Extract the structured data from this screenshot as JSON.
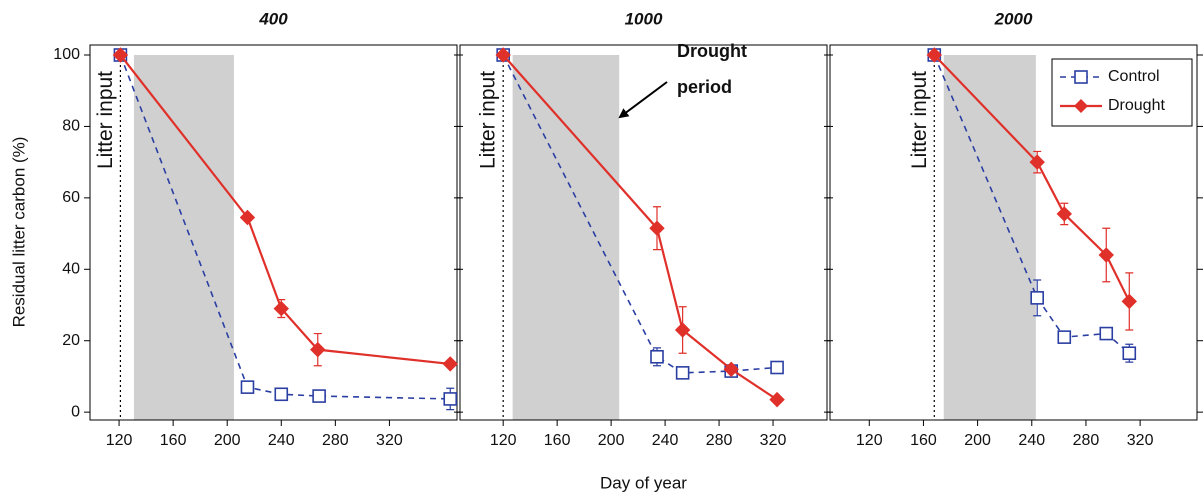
{
  "chart_data": [
    {
      "type": "line",
      "title": "400",
      "ylabel": "Residual litter carbon (%)",
      "xlim": [
        98.5,
        370
      ],
      "ylim": [
        -2.2,
        102.8
      ],
      "xticks": [
        120,
        160,
        200,
        240,
        280,
        320
      ],
      "yticks": [
        0,
        20,
        40,
        60,
        80,
        100
      ],
      "litter_input": {
        "day": 121,
        "label": "Litter input"
      },
      "drought_period": [
        131,
        205
      ],
      "series": [
        {
          "name": "Control",
          "color": "#2b3fa3",
          "x": [
            121,
            215,
            240,
            268,
            365
          ],
          "values": [
            100,
            7,
            5,
            4.5,
            3.7
          ],
          "errors": [
            1,
            1.2,
            1,
            0.8,
            3
          ]
        },
        {
          "name": "Drought",
          "color": "#e0302a",
          "x": [
            121,
            215,
            240,
            267,
            365
          ],
          "values": [
            100,
            54.5,
            29,
            17.5,
            13.5
          ],
          "errors": [
            null,
            null,
            2.5,
            4.5,
            null
          ]
        }
      ]
    },
    {
      "type": "line",
      "title": "1000",
      "xlabel": "Day of year",
      "xlim": [
        88,
        360
      ],
      "ylim": [
        -2.2,
        102.8
      ],
      "xticks": [
        120,
        160,
        200,
        240,
        280,
        320
      ],
      "yticks": [
        0,
        20,
        40,
        60,
        80,
        100
      ],
      "litter_input": {
        "day": 120,
        "label": "Litter input"
      },
      "drought_period": [
        127,
        206
      ],
      "annotation": [
        "Drought",
        "period"
      ],
      "series": [
        {
          "name": "Control",
          "color": "#2b3fa3",
          "x": [
            120,
            234,
            253,
            289,
            323
          ],
          "values": [
            100,
            15.5,
            11,
            11.5,
            12.5
          ],
          "errors": [
            1,
            2.5,
            1.2,
            1,
            1.5
          ]
        },
        {
          "name": "Drought",
          "color": "#e0302a",
          "x": [
            120,
            234,
            253,
            289,
            323
          ],
          "values": [
            100,
            51.5,
            23,
            12,
            3.5
          ],
          "errors": [
            null,
            6,
            6.5,
            null,
            null
          ]
        }
      ]
    },
    {
      "type": "line",
      "title": "2000",
      "xlim": [
        91,
        362
      ],
      "ylim": [
        -2.2,
        102.8
      ],
      "xticks": [
        120,
        160,
        200,
        240,
        280,
        320
      ],
      "yticks": [
        0,
        20,
        40,
        60,
        80,
        100
      ],
      "litter_input": {
        "day": 168,
        "label": "Litter input"
      },
      "drought_period": [
        175,
        243
      ],
      "legend": "upper right",
      "series": [
        {
          "name": "Control",
          "color": "#2b3fa3",
          "x": [
            168,
            244,
            264,
            295,
            312
          ],
          "values": [
            100,
            32,
            21,
            22,
            16.5
          ],
          "errors": [
            1,
            5,
            1,
            1,
            2.5
          ]
        },
        {
          "name": "Drought",
          "color": "#e0302a",
          "x": [
            168,
            244,
            264,
            295,
            312
          ],
          "values": [
            100,
            70,
            55.5,
            44,
            31
          ],
          "errors": [
            null,
            3,
            3,
            7.5,
            8
          ]
        }
      ]
    }
  ]
}
